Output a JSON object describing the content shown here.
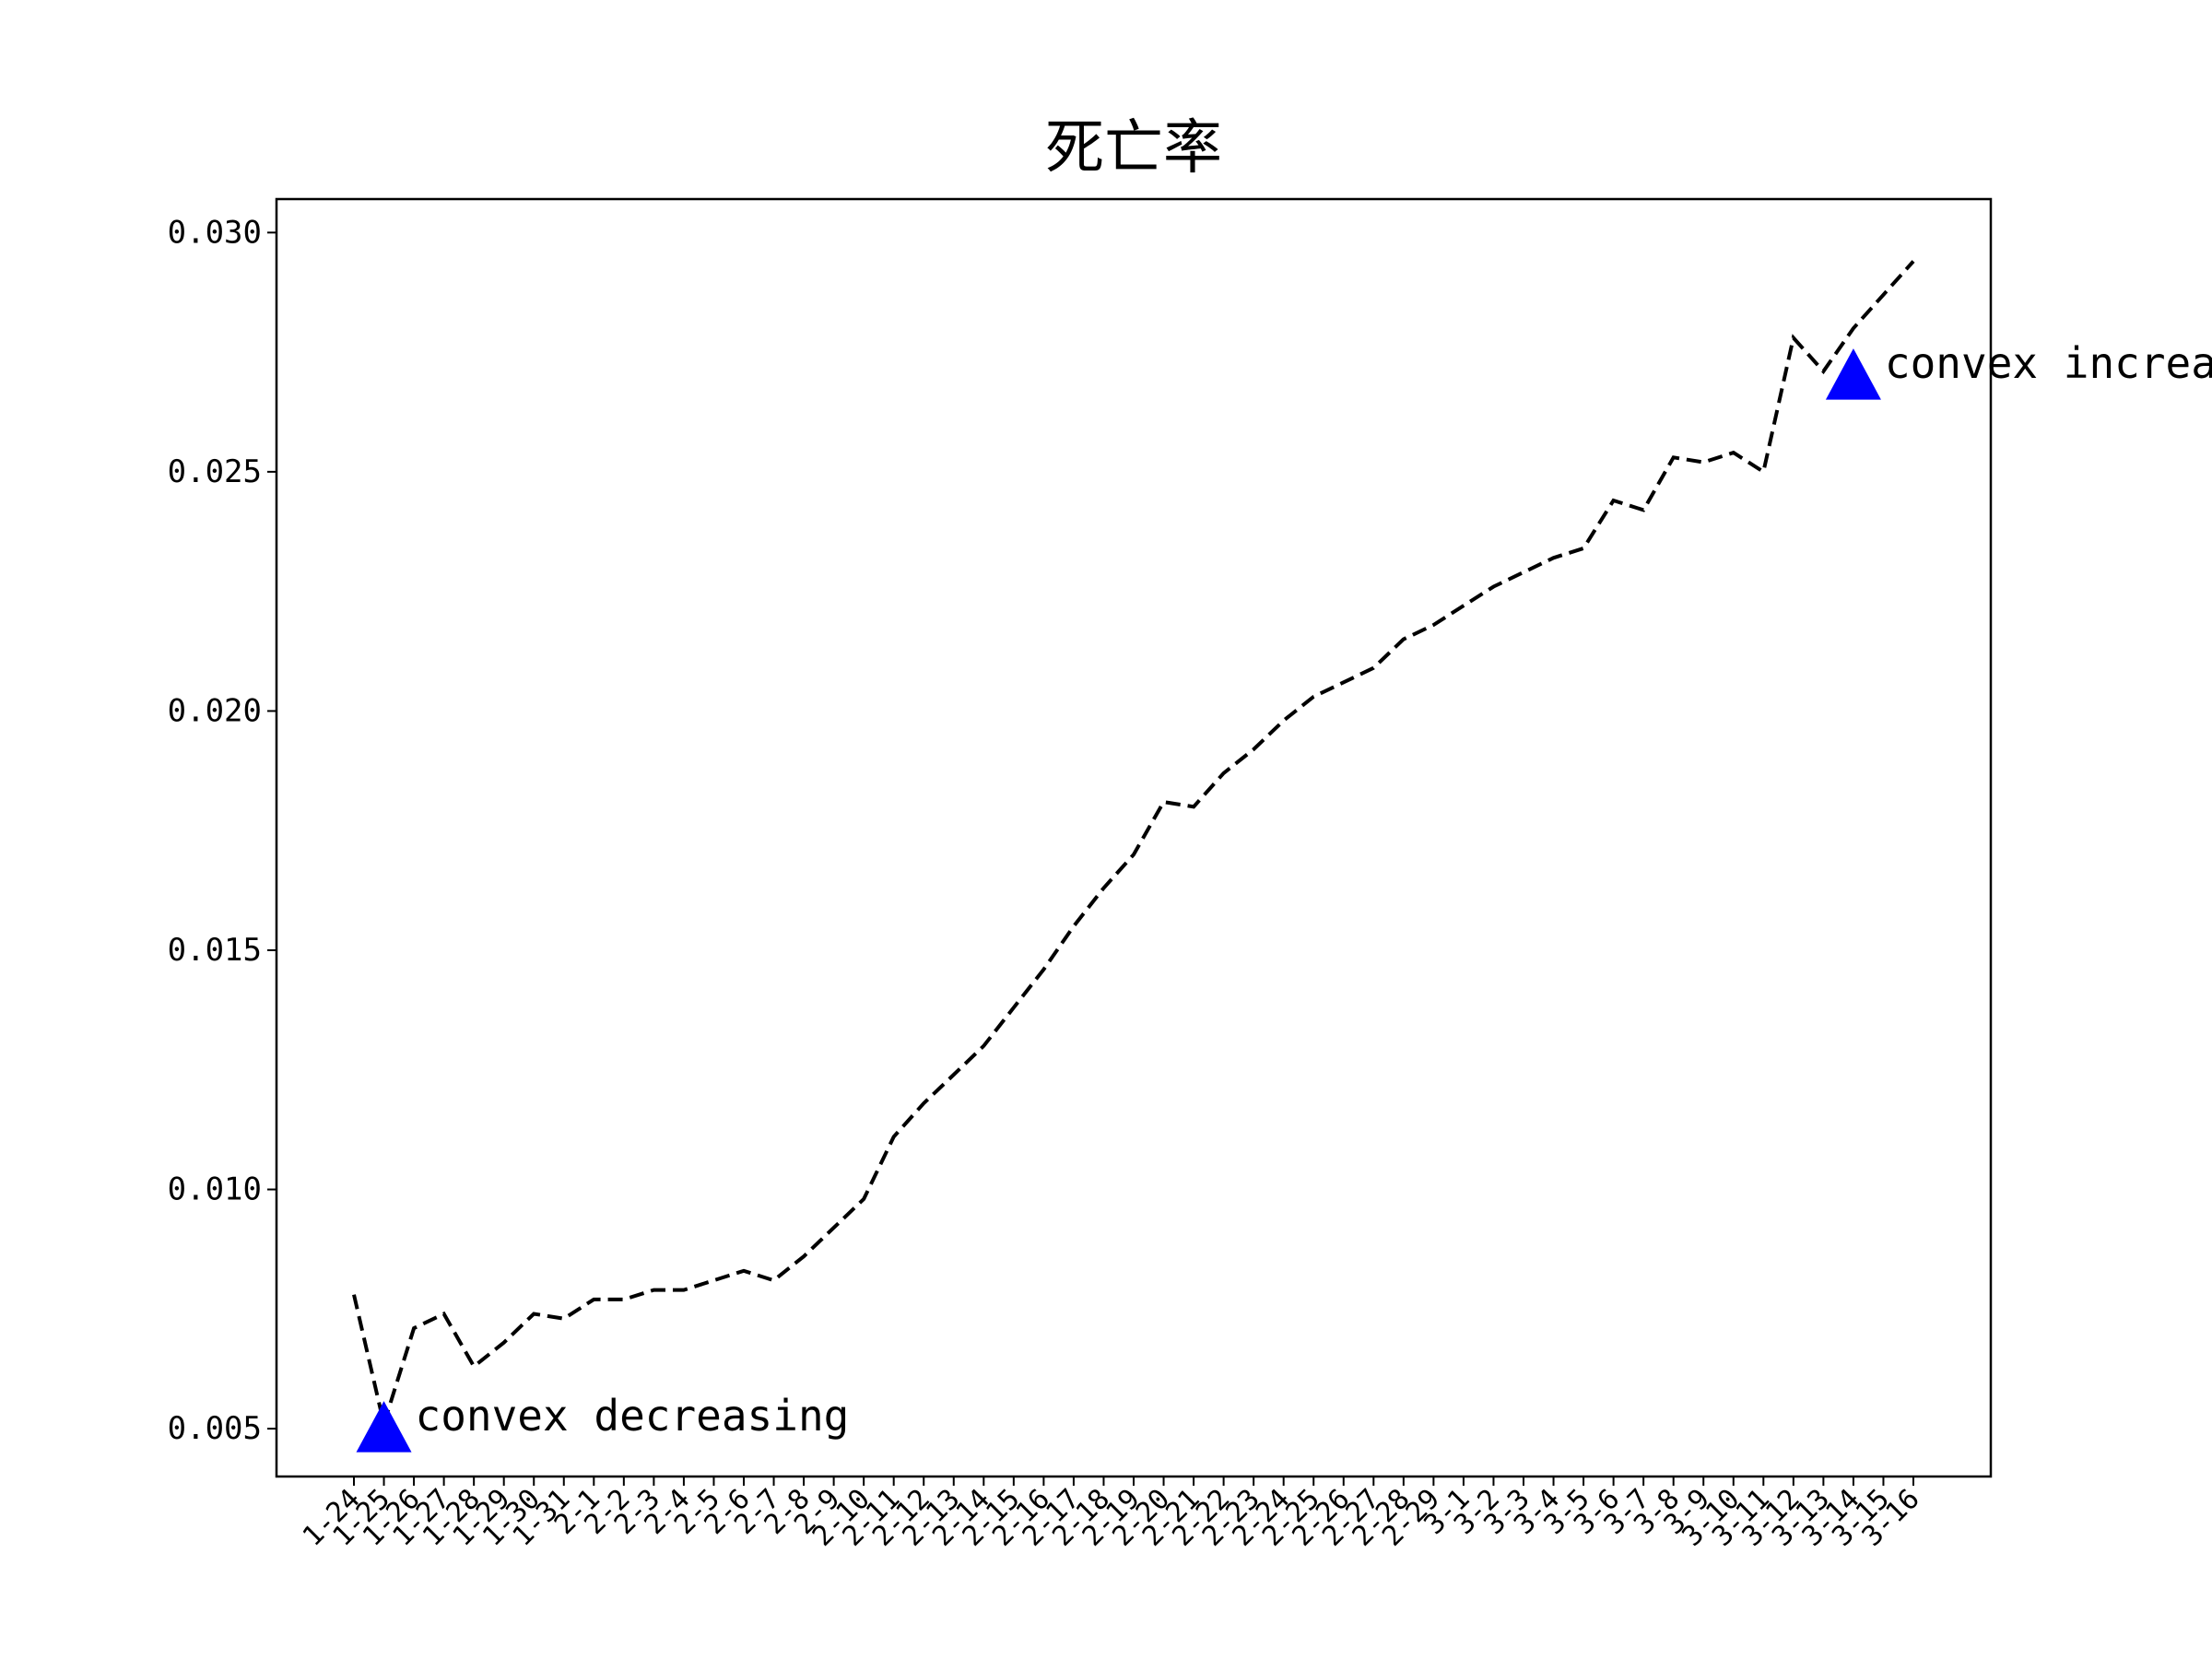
{
  "chart_data": {
    "type": "line",
    "title": "死亡率",
    "xlabel": "",
    "ylabel": "",
    "ylim": [
      0.004,
      0.0307
    ],
    "yticks": [
      0.005,
      0.01,
      0.015,
      0.02,
      0.025,
      0.03
    ],
    "ytick_labels": [
      "0.005",
      "0.010",
      "0.015",
      "0.020",
      "0.025",
      "0.030"
    ],
    "grid": false,
    "line_style": "dashed",
    "line_color": "#000000",
    "marker_color": "#0000ff",
    "x": [
      "1-24",
      "1-25",
      "1-26",
      "1-27",
      "1-28",
      "1-29",
      "1-30",
      "1-31",
      "2-1",
      "2-2",
      "2-3",
      "2-4",
      "2-5",
      "2-6",
      "2-7",
      "2-8",
      "2-9",
      "2-10",
      "2-11",
      "2-12",
      "2-13",
      "2-14",
      "2-15",
      "2-16",
      "2-17",
      "2-18",
      "2-19",
      "2-20",
      "2-21",
      "2-22",
      "2-23",
      "2-24",
      "2-25",
      "2-26",
      "2-27",
      "2-28",
      "2-29",
      "3-1",
      "3-2",
      "3-3",
      "3-4",
      "3-5",
      "3-6",
      "3-7",
      "3-8",
      "3-9",
      "3-10",
      "3-11",
      "3-12",
      "3-13",
      "3-14",
      "3-15",
      "3-16"
    ],
    "series": [
      {
        "values": [
          0.0078,
          0.0051,
          0.0071,
          0.0074,
          0.0063,
          0.0068,
          0.0074,
          0.0073,
          0.0077,
          0.0077,
          0.0079,
          0.0079,
          0.0081,
          0.0083,
          0.0081,
          0.0086,
          0.0092,
          0.0098,
          0.0111,
          0.0118,
          0.0124,
          0.013,
          0.0138,
          0.0146,
          0.0155,
          0.0163,
          0.017,
          0.0181,
          0.018,
          0.0187,
          0.0192,
          0.0198,
          0.0203,
          0.0206,
          0.0209,
          0.0215,
          0.0218,
          0.0222,
          0.0226,
          0.0229,
          0.0232,
          0.0234,
          0.0244,
          0.0242,
          0.0253,
          0.0252,
          0.0254,
          0.025,
          0.0278,
          0.0271,
          0.028,
          0.0287,
          0.0294
        ]
      }
    ],
    "annotations": [
      {
        "text": "convex decreasing",
        "x": "1-25",
        "y": 0.005
      },
      {
        "text": "convex increasing",
        "x": "3-14",
        "y": 0.027
      }
    ]
  }
}
